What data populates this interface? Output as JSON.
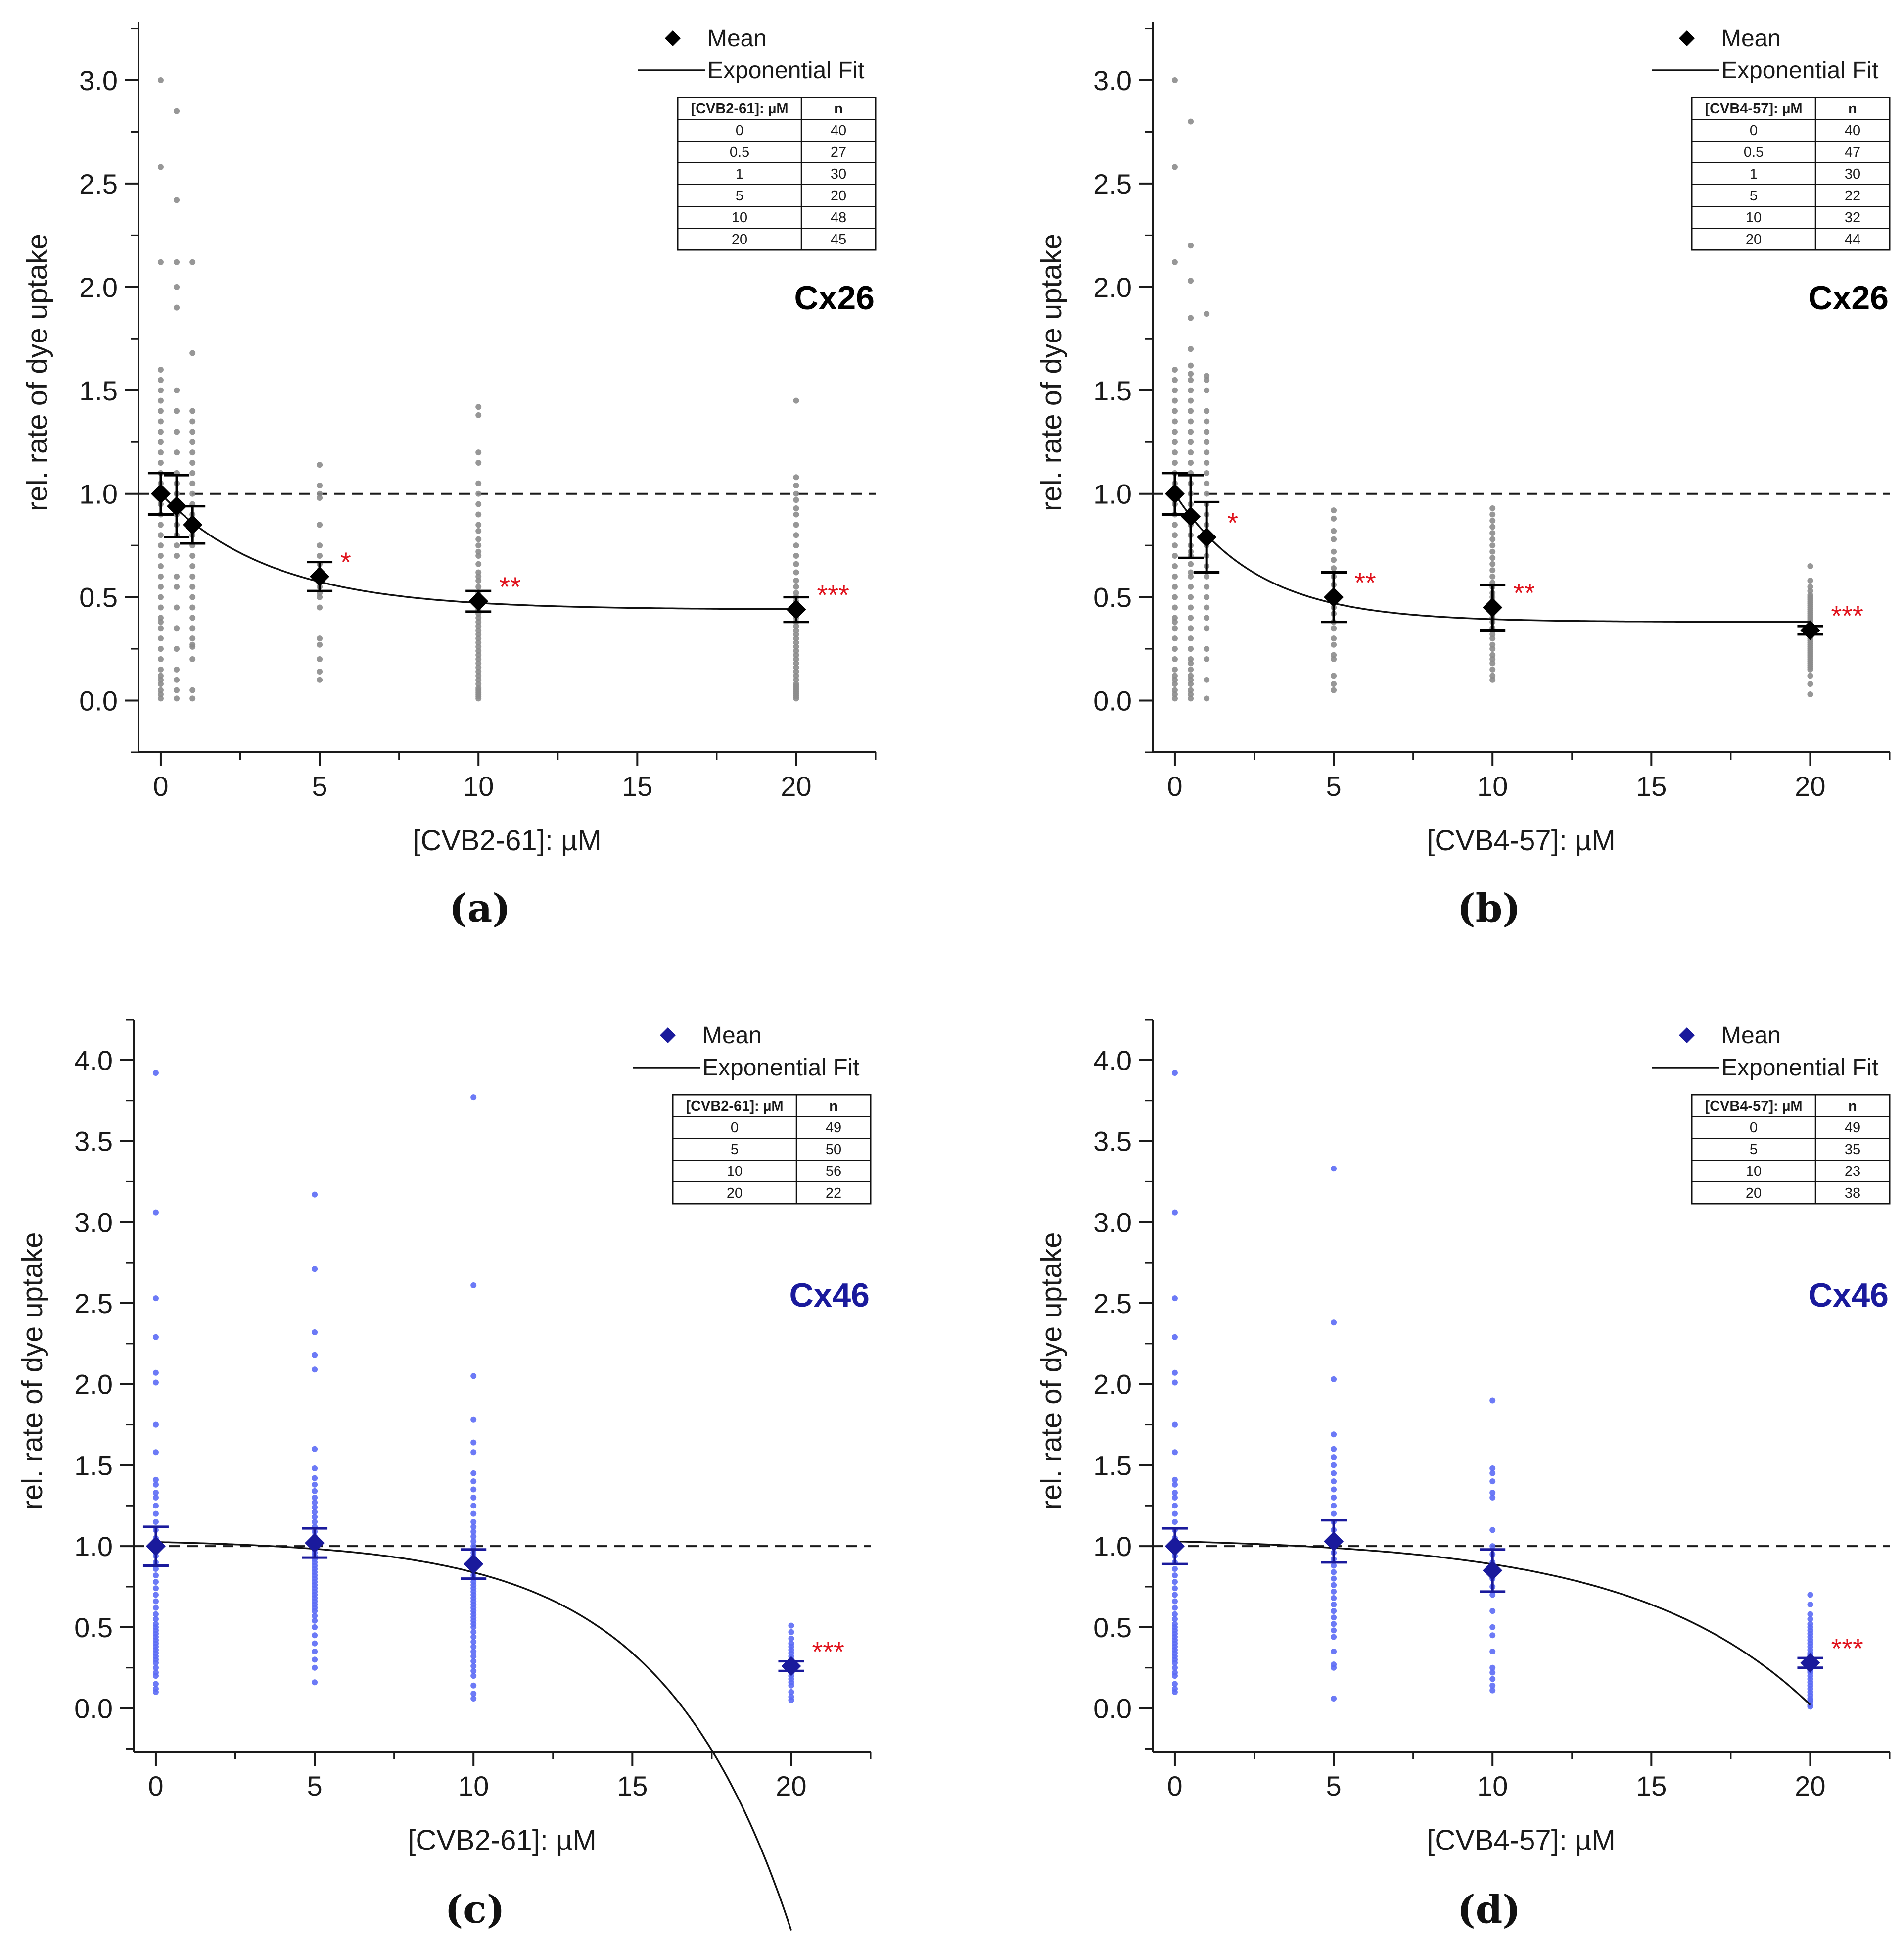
{
  "figure": {
    "ylabel": "rel. rate of dye uptake",
    "legend_mean": "Mean",
    "legend_fit": "Exponential Fit",
    "table_n_header": "n"
  },
  "chart_data": [
    {
      "type": "scatter",
      "panel_label": "(a)",
      "connexin": "Cx26",
      "connexin_color": "#000000",
      "xlabel": "[CVB2-61]: µM",
      "ylabel": "rel. rate of dye uptake",
      "table_header": "[CVB2-61]: µM",
      "xlim": [
        -0.7,
        22.5
      ],
      "ylim": [
        -0.25,
        3.28
      ],
      "xticks": [
        0,
        5,
        10,
        15,
        20
      ],
      "yticks": [
        0.0,
        0.5,
        1.0,
        1.5,
        2.0,
        2.5,
        3.0
      ],
      "reference_line": 1.0,
      "point_color": "#8c8c8c",
      "mean_color": "#000000",
      "fit": {
        "model": "exponential decay",
        "y0": 0.44,
        "A": 0.56,
        "t": 3.5
      },
      "groups": [
        {
          "x": 0,
          "mean": 1.0,
          "error": 0.1,
          "n": 40,
          "sig": "",
          "points": [
            3.0,
            2.58,
            2.12,
            1.6,
            1.55,
            1.5,
            1.45,
            1.4,
            1.35,
            1.3,
            1.25,
            1.2,
            1.15,
            1.1,
            1.05,
            1.0,
            0.95,
            0.9,
            0.85,
            0.8,
            0.75,
            0.7,
            0.65,
            0.6,
            0.55,
            0.5,
            0.45,
            0.4,
            0.38,
            0.35,
            0.3,
            0.25,
            0.2,
            0.15,
            0.12,
            0.1,
            0.08,
            0.05,
            0.03,
            0.01
          ]
        },
        {
          "x": 0.5,
          "mean": 0.94,
          "error": 0.15,
          "n": 27,
          "sig": "",
          "points": [
            2.85,
            2.42,
            2.12,
            2.0,
            1.9,
            1.5,
            1.4,
            1.3,
            1.2,
            1.1,
            1.05,
            1.0,
            0.95,
            0.9,
            0.85,
            0.8,
            0.75,
            0.7,
            0.6,
            0.55,
            0.45,
            0.35,
            0.25,
            0.15,
            0.1,
            0.05,
            0.01
          ]
        },
        {
          "x": 1,
          "mean": 0.85,
          "error": 0.09,
          "n": 30,
          "sig": "",
          "points": [
            2.12,
            1.68,
            1.4,
            1.35,
            1.3,
            1.25,
            1.2,
            1.15,
            1.1,
            1.05,
            1.0,
            0.95,
            0.9,
            0.85,
            0.8,
            0.75,
            0.7,
            0.65,
            0.6,
            0.55,
            0.5,
            0.45,
            0.4,
            0.35,
            0.3,
            0.27,
            0.26,
            0.2,
            0.05,
            0.01
          ]
        },
        {
          "x": 5,
          "mean": 0.6,
          "error": 0.07,
          "n": 20,
          "sig": "*",
          "points": [
            1.14,
            1.04,
            1.0,
            0.98,
            0.85,
            0.75,
            0.7,
            0.66,
            0.63,
            0.6,
            0.57,
            0.55,
            0.52,
            0.5,
            0.45,
            0.3,
            0.27,
            0.2,
            0.14,
            0.1
          ]
        },
        {
          "x": 10,
          "mean": 0.48,
          "error": 0.05,
          "n": 48,
          "sig": "**",
          "points": [
            1.42,
            1.38,
            1.2,
            1.15,
            1.05,
            1.0,
            0.95,
            0.9,
            0.85,
            0.82,
            0.78,
            0.75,
            0.72,
            0.7,
            0.66,
            0.62,
            0.6,
            0.58,
            0.55,
            0.52,
            0.5,
            0.48,
            0.46,
            0.44,
            0.42,
            0.4,
            0.38,
            0.36,
            0.34,
            0.32,
            0.3,
            0.28,
            0.26,
            0.24,
            0.22,
            0.2,
            0.18,
            0.16,
            0.14,
            0.12,
            0.1,
            0.08,
            0.06,
            0.05,
            0.04,
            0.03,
            0.02,
            0.01
          ]
        },
        {
          "x": 20,
          "mean": 0.44,
          "error": 0.06,
          "n": 45,
          "sig": "***",
          "points": [
            1.45,
            1.08,
            1.04,
            1.0,
            0.97,
            0.93,
            0.9,
            0.85,
            0.8,
            0.75,
            0.7,
            0.66,
            0.62,
            0.58,
            0.55,
            0.52,
            0.5,
            0.48,
            0.46,
            0.44,
            0.42,
            0.4,
            0.38,
            0.36,
            0.34,
            0.32,
            0.3,
            0.28,
            0.26,
            0.24,
            0.22,
            0.2,
            0.18,
            0.16,
            0.14,
            0.12,
            0.1,
            0.08,
            0.07,
            0.06,
            0.05,
            0.04,
            0.03,
            0.02,
            0.01
          ]
        }
      ]
    },
    {
      "type": "scatter",
      "panel_label": "(b)",
      "connexin": "Cx26",
      "connexin_color": "#000000",
      "xlabel": "[CVB4-57]: µM",
      "ylabel": "rel. rate of dye uptake",
      "table_header": "[CVB4-57]: µM",
      "xlim": [
        -0.7,
        22.5
      ],
      "ylim": [
        -0.25,
        3.28
      ],
      "xticks": [
        0,
        5,
        10,
        15,
        20
      ],
      "yticks": [
        0.0,
        0.5,
        1.0,
        1.5,
        2.0,
        2.5,
        3.0
      ],
      "reference_line": 1.0,
      "point_color": "#8c8c8c",
      "mean_color": "#000000",
      "fit": {
        "model": "exponential decay",
        "y0": 0.38,
        "A": 0.62,
        "t": 2.6
      },
      "groups": [
        {
          "x": 0,
          "mean": 1.0,
          "error": 0.1,
          "n": 40,
          "sig": "",
          "points": [
            3.0,
            2.58,
            2.12,
            1.6,
            1.55,
            1.5,
            1.45,
            1.4,
            1.35,
            1.3,
            1.25,
            1.2,
            1.15,
            1.1,
            1.05,
            1.0,
            0.95,
            0.9,
            0.85,
            0.8,
            0.75,
            0.7,
            0.65,
            0.6,
            0.55,
            0.5,
            0.45,
            0.4,
            0.38,
            0.35,
            0.3,
            0.25,
            0.2,
            0.15,
            0.12,
            0.1,
            0.08,
            0.05,
            0.03,
            0.01
          ]
        },
        {
          "x": 0.5,
          "mean": 0.89,
          "error": 0.2,
          "n": 47,
          "sig": "",
          "points": [
            2.8,
            2.2,
            2.03,
            1.85,
            1.7,
            1.62,
            1.58,
            1.55,
            1.5,
            1.45,
            1.4,
            1.35,
            1.3,
            1.25,
            1.2,
            1.15,
            1.1,
            1.05,
            1.0,
            0.95,
            0.92,
            0.9,
            0.88,
            0.85,
            0.8,
            0.75,
            0.72,
            0.7,
            0.66,
            0.62,
            0.6,
            0.55,
            0.5,
            0.45,
            0.4,
            0.35,
            0.3,
            0.25,
            0.2,
            0.18,
            0.15,
            0.12,
            0.1,
            0.08,
            0.05,
            0.03,
            0.01
          ]
        },
        {
          "x": 1,
          "mean": 0.79,
          "error": 0.17,
          "n": 30,
          "sig": "*",
          "points": [
            1.87,
            1.57,
            1.55,
            1.5,
            1.4,
            1.35,
            1.3,
            1.25,
            1.2,
            1.15,
            1.1,
            1.05,
            1.0,
            0.95,
            0.9,
            0.85,
            0.8,
            0.75,
            0.7,
            0.65,
            0.6,
            0.55,
            0.5,
            0.45,
            0.4,
            0.35,
            0.25,
            0.2,
            0.1,
            0.01
          ]
        },
        {
          "x": 5,
          "mean": 0.5,
          "error": 0.12,
          "n": 22,
          "sig": "**",
          "points": [
            0.92,
            0.88,
            0.82,
            0.78,
            0.72,
            0.68,
            0.64,
            0.6,
            0.56,
            0.52,
            0.48,
            0.45,
            0.42,
            0.38,
            0.35,
            0.3,
            0.27,
            0.22,
            0.2,
            0.12,
            0.08,
            0.05
          ]
        },
        {
          "x": 10,
          "mean": 0.45,
          "error": 0.11,
          "n": 32,
          "sig": "**",
          "points": [
            0.93,
            0.9,
            0.87,
            0.84,
            0.81,
            0.78,
            0.75,
            0.72,
            0.69,
            0.66,
            0.63,
            0.6,
            0.57,
            0.55,
            0.52,
            0.5,
            0.48,
            0.45,
            0.42,
            0.4,
            0.38,
            0.35,
            0.32,
            0.3,
            0.27,
            0.25,
            0.22,
            0.2,
            0.18,
            0.15,
            0.12,
            0.1
          ]
        },
        {
          "x": 20,
          "mean": 0.34,
          "error": 0.02,
          "n": 44,
          "sig": "***",
          "points": [
            0.65,
            0.58,
            0.55,
            0.53,
            0.51,
            0.5,
            0.49,
            0.48,
            0.47,
            0.46,
            0.45,
            0.44,
            0.43,
            0.42,
            0.41,
            0.4,
            0.39,
            0.38,
            0.37,
            0.36,
            0.35,
            0.34,
            0.33,
            0.32,
            0.31,
            0.3,
            0.29,
            0.28,
            0.27,
            0.26,
            0.25,
            0.24,
            0.23,
            0.22,
            0.21,
            0.2,
            0.19,
            0.18,
            0.17,
            0.16,
            0.15,
            0.12,
            0.08,
            0.03
          ]
        }
      ]
    },
    {
      "type": "scatter",
      "panel_label": "(c)",
      "connexin": "Cx46",
      "connexin_color": "#1a1a9c",
      "xlabel": "[CVB2-61]: µM",
      "ylabel": "rel. rate of dye uptake",
      "table_header": "[CVB2-61]: µM",
      "xlim": [
        -0.7,
        22.5
      ],
      "ylim": [
        -0.27,
        4.25
      ],
      "xticks": [
        0,
        5,
        10,
        15,
        20
      ],
      "yticks": [
        0.0,
        0.5,
        1.0,
        1.5,
        2.0,
        2.5,
        3.0,
        3.5,
        4.0
      ],
      "reference_line": 1.0,
      "point_color": "#5c6cf5",
      "mean_color": "#1a1a9c",
      "fit": {
        "model": "exponential growth",
        "y0": 1.043,
        "A": -0.0173,
        "t": 4.05
      },
      "groups": [
        {
          "x": 0,
          "mean": 1.0,
          "error": 0.12,
          "n": 49,
          "sig": "",
          "points": [
            3.92,
            3.06,
            2.53,
            2.29,
            2.07,
            2.01,
            1.75,
            1.58,
            1.41,
            1.38,
            1.33,
            1.3,
            1.25,
            1.2,
            1.15,
            1.1,
            1.05,
            1.0,
            0.97,
            0.94,
            0.9,
            0.86,
            0.82,
            0.78,
            0.74,
            0.7,
            0.66,
            0.62,
            0.58,
            0.55,
            0.52,
            0.5,
            0.48,
            0.46,
            0.44,
            0.42,
            0.4,
            0.38,
            0.36,
            0.34,
            0.32,
            0.3,
            0.28,
            0.25,
            0.22,
            0.2,
            0.15,
            0.12,
            0.1
          ]
        },
        {
          "x": 5,
          "mean": 1.02,
          "error": 0.09,
          "n": 50,
          "sig": "",
          "points": [
            3.17,
            2.71,
            2.32,
            2.18,
            2.09,
            1.6,
            1.48,
            1.42,
            1.38,
            1.34,
            1.3,
            1.27,
            1.24,
            1.21,
            1.18,
            1.15,
            1.12,
            1.09,
            1.06,
            1.03,
            1.0,
            0.98,
            0.96,
            0.94,
            0.92,
            0.9,
            0.88,
            0.86,
            0.84,
            0.82,
            0.8,
            0.78,
            0.76,
            0.74,
            0.72,
            0.7,
            0.68,
            0.66,
            0.64,
            0.62,
            0.6,
            0.57,
            0.54,
            0.5,
            0.45,
            0.4,
            0.35,
            0.3,
            0.25,
            0.16
          ]
        },
        {
          "x": 10,
          "mean": 0.89,
          "error": 0.09,
          "n": 56,
          "sig": "",
          "points": [
            3.77,
            2.61,
            2.05,
            1.78,
            1.64,
            1.58,
            1.45,
            1.4,
            1.35,
            1.3,
            1.25,
            1.2,
            1.15,
            1.12,
            1.09,
            1.06,
            1.03,
            1.0,
            0.98,
            0.96,
            0.94,
            0.92,
            0.9,
            0.88,
            0.86,
            0.84,
            0.82,
            0.8,
            0.78,
            0.76,
            0.74,
            0.72,
            0.7,
            0.68,
            0.66,
            0.64,
            0.62,
            0.6,
            0.58,
            0.56,
            0.54,
            0.52,
            0.5,
            0.47,
            0.44,
            0.41,
            0.38,
            0.35,
            0.32,
            0.29,
            0.26,
            0.23,
            0.2,
            0.14,
            0.09,
            0.06
          ]
        },
        {
          "x": 20,
          "mean": 0.26,
          "error": 0.03,
          "n": 22,
          "sig": "***",
          "points": [
            0.51,
            0.47,
            0.43,
            0.4,
            0.38,
            0.36,
            0.34,
            0.32,
            0.3,
            0.28,
            0.27,
            0.26,
            0.25,
            0.24,
            0.22,
            0.2,
            0.18,
            0.16,
            0.14,
            0.1,
            0.07,
            0.05
          ]
        }
      ]
    },
    {
      "type": "scatter",
      "panel_label": "(d)",
      "connexin": "Cx46",
      "connexin_color": "#1a1a9c",
      "xlabel": "[CVB4-57]: µM",
      "ylabel": "rel. rate of dye uptake",
      "table_header": "[CVB4-57]: µM",
      "xlim": [
        -0.7,
        22.5
      ],
      "ylim": [
        -0.27,
        4.25
      ],
      "xticks": [
        0,
        5,
        10,
        15,
        20
      ],
      "yticks": [
        0.0,
        0.5,
        1.0,
        1.5,
        2.0,
        2.5,
        3.0,
        3.5,
        4.0
      ],
      "reference_line": 1.0,
      "point_color": "#5c6cf5",
      "mean_color": "#1a1a9c",
      "fit": {
        "model": "exponential growth",
        "y0": 1.057,
        "A": -0.0273,
        "t": 5.5
      },
      "groups": [
        {
          "x": 0,
          "mean": 1.0,
          "error": 0.11,
          "n": 49,
          "sig": "",
          "points": [
            3.92,
            3.06,
            2.53,
            2.29,
            2.07,
            2.01,
            1.75,
            1.58,
            1.41,
            1.38,
            1.33,
            1.3,
            1.25,
            1.2,
            1.15,
            1.1,
            1.05,
            1.0,
            0.97,
            0.94,
            0.9,
            0.86,
            0.82,
            0.78,
            0.74,
            0.7,
            0.66,
            0.62,
            0.58,
            0.55,
            0.52,
            0.5,
            0.48,
            0.46,
            0.44,
            0.42,
            0.4,
            0.38,
            0.36,
            0.34,
            0.32,
            0.3,
            0.28,
            0.25,
            0.22,
            0.2,
            0.15,
            0.12,
            0.1
          ]
        },
        {
          "x": 5,
          "mean": 1.03,
          "error": 0.13,
          "n": 35,
          "sig": "",
          "points": [
            3.33,
            2.38,
            2.03,
            1.69,
            1.6,
            1.55,
            1.5,
            1.45,
            1.4,
            1.35,
            1.3,
            1.25,
            1.2,
            1.15,
            1.1,
            1.05,
            1.0,
            0.96,
            0.92,
            0.88,
            0.84,
            0.8,
            0.76,
            0.72,
            0.68,
            0.64,
            0.6,
            0.56,
            0.52,
            0.48,
            0.44,
            0.35,
            0.27,
            0.25,
            0.06
          ]
        },
        {
          "x": 10,
          "mean": 0.85,
          "error": 0.13,
          "n": 23,
          "sig": "",
          "points": [
            1.9,
            1.48,
            1.45,
            1.4,
            1.33,
            1.3,
            1.1,
            1.0,
            0.95,
            0.9,
            0.85,
            0.8,
            0.75,
            0.7,
            0.6,
            0.5,
            0.45,
            0.35,
            0.25,
            0.22,
            0.18,
            0.14,
            0.11
          ]
        },
        {
          "x": 20,
          "mean": 0.28,
          "error": 0.03,
          "n": 38,
          "sig": "***",
          "points": [
            0.7,
            0.64,
            0.58,
            0.55,
            0.52,
            0.5,
            0.48,
            0.46,
            0.44,
            0.42,
            0.4,
            0.38,
            0.36,
            0.34,
            0.33,
            0.32,
            0.31,
            0.3,
            0.29,
            0.28,
            0.27,
            0.26,
            0.25,
            0.24,
            0.23,
            0.22,
            0.2,
            0.18,
            0.16,
            0.14,
            0.12,
            0.1,
            0.08,
            0.06,
            0.05,
            0.04,
            0.02,
            0.01
          ]
        }
      ]
    }
  ]
}
